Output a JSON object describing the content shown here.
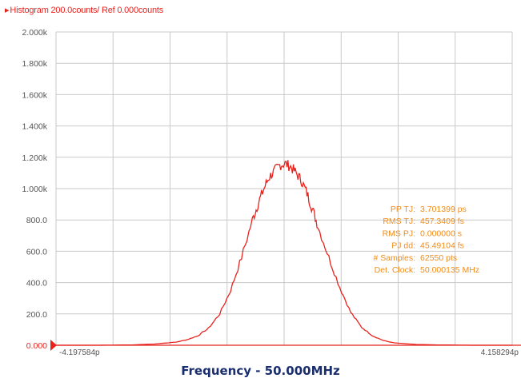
{
  "colors": {
    "trace": "#e8231e",
    "header": "#e8231e",
    "axis_text": "#555555",
    "annotation": "#f08c1a",
    "grid": "#c9c9c9",
    "caption": "#1a2e6e"
  },
  "header": {
    "marker": "▸",
    "text": "Histogram 200.0counts/ Ref 0.000counts"
  },
  "caption": "Frequency - 50.000MHz",
  "chart_data": {
    "type": "line",
    "title": "Histogram 200.0counts/ Ref 0.000counts",
    "xlabel": "",
    "ylabel": "",
    "grid": true,
    "xlim": [
      -4.197584,
      4.158294
    ],
    "ylim": [
      0,
      2000
    ],
    "y_tick_values": [
      0,
      200,
      400,
      600,
      800,
      1000,
      1200,
      1400,
      1600,
      1800,
      2000
    ],
    "y_tick_labels": [
      "0.000",
      "200.0",
      "400.0",
      "600.0",
      "800.0",
      "1.000k",
      "1.200k",
      "1.400k",
      "1.600k",
      "1.800k",
      "2.000k"
    ],
    "x_tick_labels": [
      "-4.197584p",
      "4.158294p"
    ],
    "x_units": "ps",
    "reference_marker": "0.000",
    "series": [
      {
        "x": [
          -4.197584,
          -3.4,
          -2.8,
          -2.4,
          -2.0,
          -1.8,
          -1.6,
          -1.4,
          -1.2,
          -1.0,
          -0.8,
          -0.6,
          -0.5,
          -0.4,
          -0.3,
          -0.2,
          -0.1,
          0.0,
          0.1,
          0.2,
          0.3,
          0.4,
          0.5,
          0.6,
          0.8,
          1.0,
          1.2,
          1.4,
          1.6,
          1.8,
          2.0,
          2.4,
          2.8,
          3.4,
          4.158294
        ],
        "values": [
          0,
          0,
          2,
          8,
          20,
          35,
          60,
          110,
          200,
          350,
          560,
          800,
          900,
          990,
          1070,
          1110,
          1150,
          1160,
          1140,
          1100,
          1050,
          970,
          870,
          760,
          560,
          370,
          210,
          115,
          60,
          30,
          15,
          5,
          2,
          0,
          0
        ]
      }
    ],
    "annotations": [
      {
        "label": "PP TJ:",
        "value": "3.701399 ps"
      },
      {
        "label": "RMS TJ:",
        "value": "457.3409 fs"
      },
      {
        "label": "RMS PJ:",
        "value": "0.000000 s"
      },
      {
        "label": "PJ dd:",
        "value": "45.49104 fs"
      },
      {
        "label": "# Samples:",
        "value": "62550 pts"
      },
      {
        "label": "Det. Clock:",
        "value": "50.000135 MHz"
      }
    ]
  }
}
